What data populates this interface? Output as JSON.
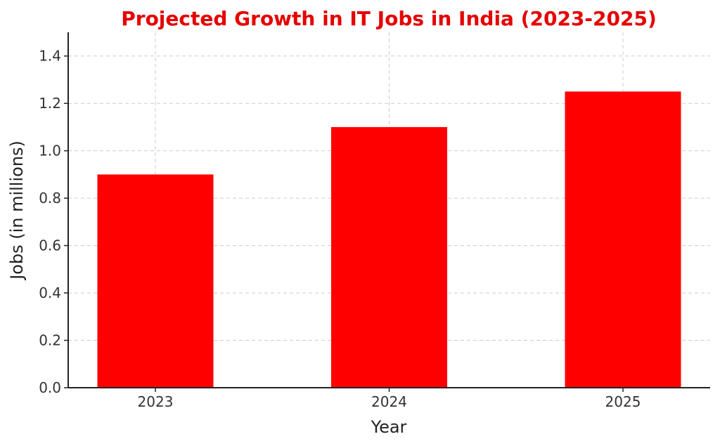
{
  "chart_data": {
    "type": "bar",
    "title": "Projected Growth in IT Jobs in India (2023-2025)",
    "xlabel": "Year",
    "ylabel": "Jobs (in millions)",
    "categories": [
      "2023",
      "2024",
      "2025"
    ],
    "values": [
      0.9,
      1.1,
      1.25
    ],
    "ylim": [
      0,
      1.5
    ],
    "yticks": [
      "0.0",
      "0.2",
      "0.4",
      "0.6",
      "0.8",
      "1.0",
      "1.2",
      "1.4"
    ],
    "grid": true,
    "bar_color": "#ff0000",
    "title_color": "#e60000"
  }
}
